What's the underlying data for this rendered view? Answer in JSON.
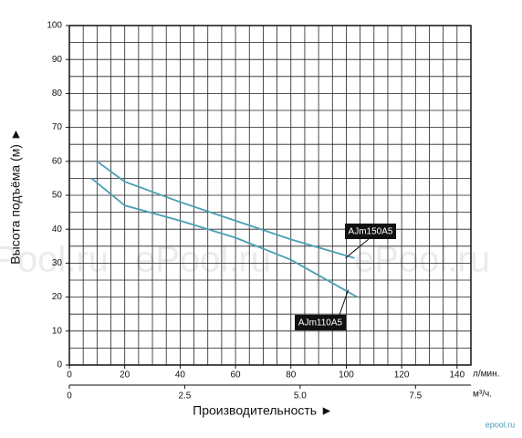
{
  "chart_data": {
    "type": "line",
    "y_label": "Высота подъёма (м) ►",
    "x_label": "Производительность ►",
    "x_unit": "л/мин.",
    "x2_unit": "м³/ч.",
    "xlim": [
      0,
      145
    ],
    "xticks": [
      0,
      20,
      40,
      60,
      80,
      100,
      120,
      140
    ],
    "x2lim": [
      0,
      8.7
    ],
    "x2ticks": [
      0,
      2.5,
      {
        "value": 5,
        "label": "5.0"
      },
      7.5
    ],
    "ylim": [
      0,
      100
    ],
    "yticks": [
      0,
      10,
      20,
      30,
      40,
      50,
      60,
      70,
      80,
      90,
      100
    ],
    "grid": true,
    "grid_step": 5,
    "series": [
      {
        "name": "AJm150A5",
        "color": "#4a9fb3",
        "x": [
          10,
          20,
          40,
          60,
          80,
          103
        ],
        "values": [
          60,
          54,
          48,
          42.5,
          37,
          31.5
        ]
      },
      {
        "name": "AJm110A5",
        "color": "#4a9fb3",
        "x": [
          8,
          20,
          40,
          60,
          80,
          104
        ],
        "values": [
          55,
          47,
          42.5,
          37.5,
          31,
          20
        ]
      }
    ],
    "watermarks": [
      "ePool.ru",
      "ePool.ru",
      "ePool.ru"
    ],
    "logo": "epool.ru"
  }
}
